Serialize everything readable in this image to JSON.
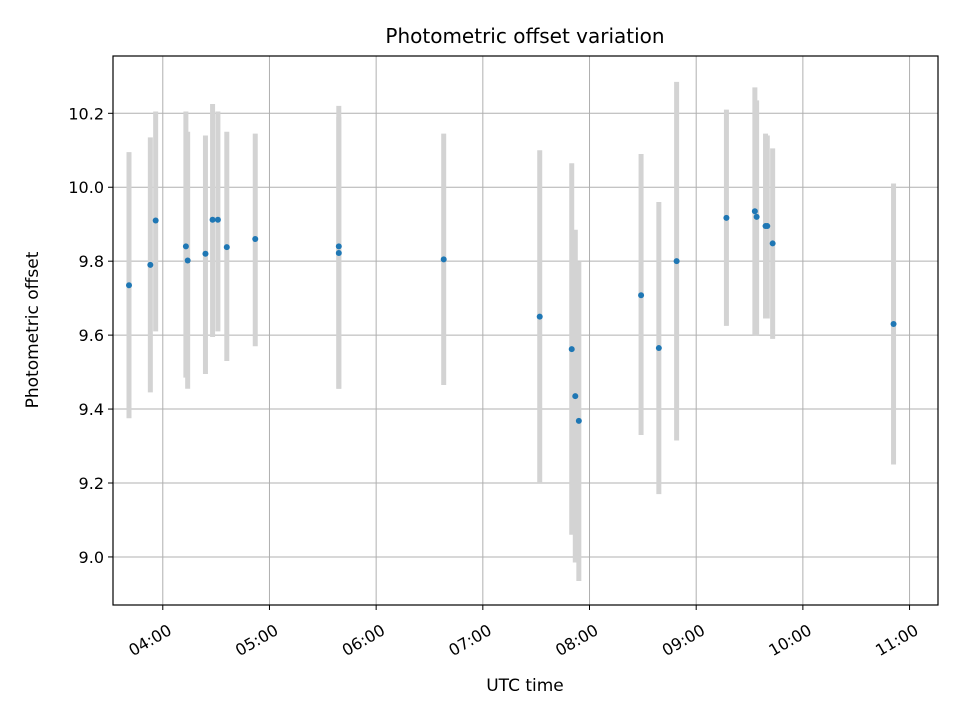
{
  "chart_data": {
    "type": "scatter",
    "title": "Photometric offset variation",
    "xlabel": "UTC time",
    "ylabel": "Photometric offset",
    "xlim": [
      "03:32",
      "11:16"
    ],
    "ylim": [
      8.87,
      10.355
    ],
    "x_ticks": [
      "04:00",
      "05:00",
      "06:00",
      "07:00",
      "08:00",
      "09:00",
      "10:00",
      "11:00"
    ],
    "y_ticks": [
      "9.0",
      "9.2",
      "9.4",
      "9.6",
      "9.8",
      "10.0",
      "10.2"
    ],
    "grid": true,
    "colors": {
      "marker": "#1f77b4",
      "errorbar": "#d3d3d3",
      "grid": "#b0b0b0"
    },
    "points": [
      {
        "x": "03:41",
        "y": 9.735,
        "yerr_low": 9.375,
        "yerr_high": 10.095
      },
      {
        "x": "03:53",
        "y": 9.79,
        "yerr_low": 9.445,
        "yerr_high": 10.135
      },
      {
        "x": "03:56",
        "y": 9.91,
        "yerr_low": 9.61,
        "yerr_high": 10.205
      },
      {
        "x": "04:13",
        "y": 9.84,
        "yerr_low": 9.485,
        "yerr_high": 10.205
      },
      {
        "x": "04:14",
        "y": 9.802,
        "yerr_low": 9.455,
        "yerr_high": 10.15
      },
      {
        "x": "04:24",
        "y": 9.82,
        "yerr_low": 9.495,
        "yerr_high": 10.14
      },
      {
        "x": "04:28",
        "y": 9.912,
        "yerr_low": 9.595,
        "yerr_high": 10.225
      },
      {
        "x": "04:31",
        "y": 9.912,
        "yerr_low": 9.61,
        "yerr_high": 10.205
      },
      {
        "x": "04:36",
        "y": 9.838,
        "yerr_low": 9.53,
        "yerr_high": 10.15
      },
      {
        "x": "04:52",
        "y": 9.86,
        "yerr_low": 9.57,
        "yerr_high": 10.145
      },
      {
        "x": "05:39",
        "y": 9.84,
        "yerr_low": 9.455,
        "yerr_high": 10.22
      },
      {
        "x": "05:39",
        "y": 9.822,
        "yerr_low": 9.455,
        "yerr_high": 10.19
      },
      {
        "x": "06:38",
        "y": 9.805,
        "yerr_low": 9.465,
        "yerr_high": 10.145
      },
      {
        "x": "07:32",
        "y": 9.65,
        "yerr_low": 9.2,
        "yerr_high": 10.1
      },
      {
        "x": "07:50",
        "y": 9.562,
        "yerr_low": 9.06,
        "yerr_high": 10.065
      },
      {
        "x": "07:52",
        "y": 9.435,
        "yerr_low": 8.985,
        "yerr_high": 9.885
      },
      {
        "x": "07:54",
        "y": 9.368,
        "yerr_low": 8.935,
        "yerr_high": 9.8
      },
      {
        "x": "08:29",
        "y": 9.708,
        "yerr_low": 9.33,
        "yerr_high": 10.09
      },
      {
        "x": "08:39",
        "y": 9.565,
        "yerr_low": 9.17,
        "yerr_high": 9.96
      },
      {
        "x": "08:49",
        "y": 9.8,
        "yerr_low": 9.315,
        "yerr_high": 10.285
      },
      {
        "x": "09:17",
        "y": 9.917,
        "yerr_low": 9.625,
        "yerr_high": 10.21
      },
      {
        "x": "09:33",
        "y": 9.935,
        "yerr_low": 9.6,
        "yerr_high": 10.27
      },
      {
        "x": "09:34",
        "y": 9.92,
        "yerr_low": 9.6,
        "yerr_high": 10.235
      },
      {
        "x": "09:39",
        "y": 9.895,
        "yerr_low": 9.645,
        "yerr_high": 10.145
      },
      {
        "x": "09:40",
        "y": 9.895,
        "yerr_low": 9.645,
        "yerr_high": 10.14
      },
      {
        "x": "09:43",
        "y": 9.848,
        "yerr_low": 9.59,
        "yerr_high": 10.105
      },
      {
        "x": "10:51",
        "y": 9.63,
        "yerr_low": 9.25,
        "yerr_high": 10.01
      }
    ]
  }
}
